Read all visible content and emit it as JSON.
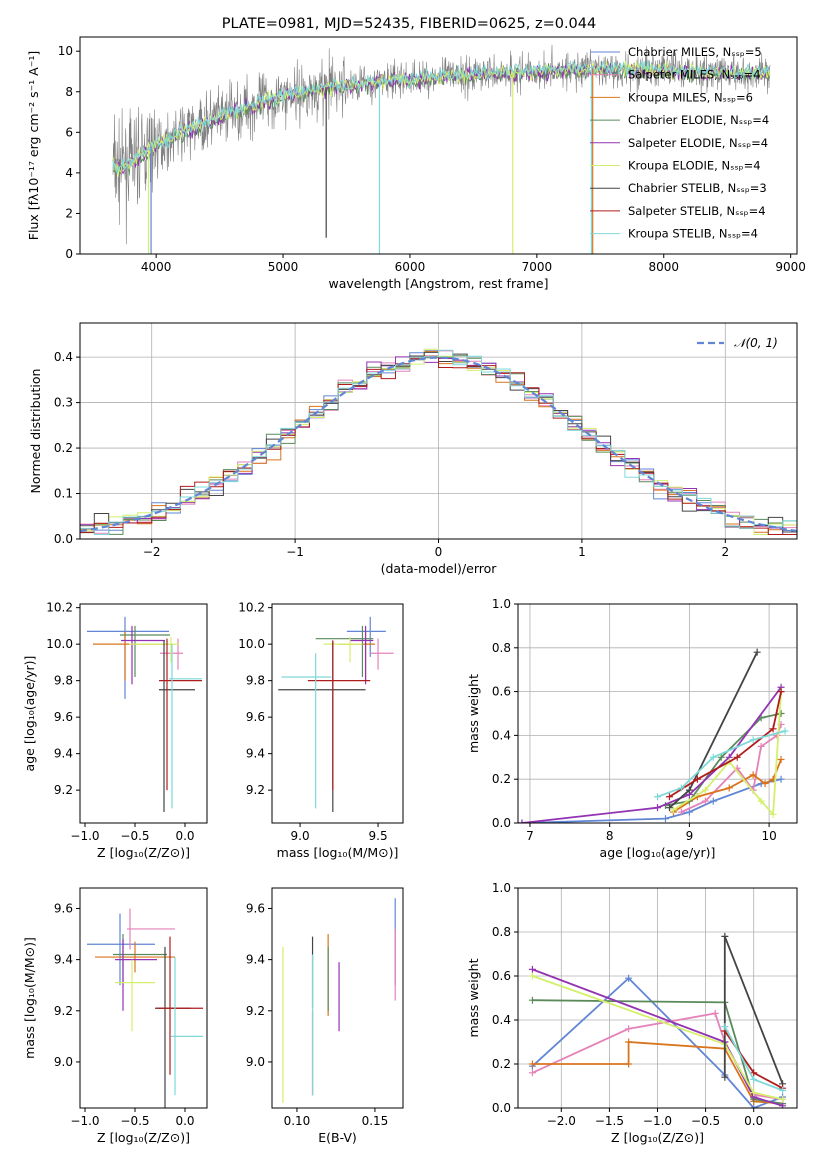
{
  "colors": [
    "#6186d5",
    "#e582b9",
    "#d9741d",
    "#5a8a5a",
    "#9333b3",
    "#d4ef6c",
    "#444444",
    "#b01d1d",
    "#7fd8d8"
  ],
  "chart_data": [
    {
      "id": "spectrum",
      "type": "line",
      "title": "PLATE=0981, MJD=52435, FIBERID=0625, z=0.044",
      "xlabel": "wavelength [Angstrom, rest frame]",
      "ylabel": "Flux [fλ10⁻¹⁷ erg cm⁻² s⁻¹ A⁻¹]",
      "xlim": [
        3400,
        9050
      ],
      "ylim": [
        0,
        10.7
      ],
      "xticks": [
        4000,
        5000,
        6000,
        7000,
        8000,
        9000
      ],
      "yticks": [
        0,
        2,
        4,
        6,
        8,
        10
      ],
      "legend_position": "right",
      "legend": [
        "Chabrier MILES, Nₛₛₚ=5",
        "Salpeter MILES, Nₛₛₚ=4",
        "Kroupa MILES, Nₛₛₚ=6",
        "Chabrier ELODIE, Nₛₛₚ=4",
        "Salpeter ELODIE, Nₛₛₚ=4",
        "Kroupa ELODIE, Nₛₛₚ=4",
        "Chabrier STELIB, Nₛₛₚ=3",
        "Salpeter STELIB, Nₛₛₚ=4",
        "Kroupa STELIB, Nₛₛₚ=4"
      ],
      "continuum": [
        [
          3660,
          4.4
        ],
        [
          3700,
          4.2
        ],
        [
          3800,
          4.5
        ],
        [
          3900,
          4.9
        ],
        [
          4000,
          5.4
        ],
        [
          4100,
          5.6
        ],
        [
          4200,
          6.0
        ],
        [
          4300,
          6.2
        ],
        [
          4400,
          6.5
        ],
        [
          4600,
          7.0
        ],
        [
          4800,
          7.4
        ],
        [
          5000,
          7.8
        ],
        [
          5200,
          8.0
        ],
        [
          5500,
          8.3
        ],
        [
          5800,
          8.5
        ],
        [
          6000,
          8.6
        ],
        [
          6300,
          8.8
        ],
        [
          6600,
          8.9
        ],
        [
          7000,
          9.0
        ],
        [
          7400,
          9.1
        ],
        [
          7800,
          9.1
        ],
        [
          8200,
          9.0
        ],
        [
          8600,
          8.9
        ],
        [
          8840,
          8.9
        ]
      ],
      "drops": [
        {
          "series": 0,
          "x": 3960,
          "to": 0
        },
        {
          "series": 5,
          "x": 3940,
          "to": 0
        },
        {
          "series": 8,
          "x": 5760,
          "to": 0
        },
        {
          "series": 5,
          "x": 6810,
          "to": 0
        },
        {
          "series": 2,
          "x": 7440,
          "to": 0
        },
        {
          "series": 8,
          "x": 7430,
          "to": 0
        },
        {
          "series": 6,
          "x": 5340,
          "to": 0.8
        }
      ]
    },
    {
      "id": "hist",
      "type": "step",
      "xlabel": "(data-model)/error",
      "ylabel": "Normed distribution",
      "xlim": [
        -2.5,
        2.5
      ],
      "ylim": [
        0,
        0.475
      ],
      "xticks": [
        -2,
        -1,
        0,
        1,
        2
      ],
      "yticks": [
        0.0,
        0.1,
        0.2,
        0.3,
        0.4
      ],
      "grid": true,
      "legend": "𝒩(0, 1)",
      "legend_position": "top-right",
      "bin_width": 0.1
    },
    {
      "id": "zage",
      "type": "errorbar",
      "xlabel": "Z [log₁₀(Z/Z⊙)]",
      "ylabel": "age  [log₁₀(age/yr)]",
      "xlim": [
        -1.05,
        0.22
      ],
      "ylim": [
        9.02,
        10.22
      ],
      "xticks": [
        -1.0,
        -0.5,
        0.0
      ],
      "yticks": [
        9.2,
        9.4,
        9.6,
        9.8,
        10.0,
        10.2
      ],
      "points": [
        {
          "x": -0.6,
          "y": 10.07,
          "xe": [
            -0.98,
            -0.16
          ],
          "ye": [
            9.7,
            10.15
          ]
        },
        {
          "x": -0.07,
          "y": 9.95,
          "xe": [
            -0.25,
            -0.02
          ],
          "ye": [
            9.86,
            10.03
          ]
        },
        {
          "x": -0.6,
          "y": 10.0,
          "xe": [
            -0.92,
            -0.16
          ],
          "ye": [
            9.8,
            10.07
          ]
        },
        {
          "x": -0.5,
          "y": 10.05,
          "xe": [
            -0.65,
            -0.15
          ],
          "ye": [
            9.82,
            10.1
          ]
        },
        {
          "x": -0.53,
          "y": 10.02,
          "xe": [
            -0.64,
            -0.2
          ],
          "ye": [
            9.78,
            10.1
          ]
        },
        {
          "x": -0.14,
          "y": 10.0,
          "xe": [
            -0.56,
            -0.06
          ],
          "ye": [
            9.9,
            10.04
          ]
        },
        {
          "x": -0.21,
          "y": 9.75,
          "xe": [
            -0.26,
            0.1
          ],
          "ye": [
            9.08,
            10.02
          ]
        },
        {
          "x": -0.18,
          "y": 9.8,
          "xe": [
            -0.26,
            0.17
          ],
          "ye": [
            9.2,
            10.03
          ]
        },
        {
          "x": -0.13,
          "y": 9.81,
          "xe": [
            -0.16,
            0.17
          ],
          "ye": [
            9.1,
            10.0
          ]
        }
      ]
    },
    {
      "id": "massage",
      "type": "errorbar",
      "xlabel": "mass [log₁₀(M/M⊙)]",
      "ylabel": "",
      "xlim": [
        8.82,
        9.66
      ],
      "ylim": [
        9.02,
        10.22
      ],
      "xticks": [
        9.0,
        9.5
      ],
      "yticks": [
        9.2,
        9.4,
        9.6,
        9.8,
        10.0,
        10.2
      ],
      "points": [
        {
          "x": 9.45,
          "y": 10.07,
          "xe": [
            9.3,
            9.55
          ],
          "ye": [
            9.93,
            10.15
          ]
        },
        {
          "x": 9.5,
          "y": 9.95,
          "xe": [
            9.45,
            9.6
          ],
          "ye": [
            9.86,
            10.03
          ]
        },
        {
          "x": 9.42,
          "y": 10.0,
          "xe": [
            9.25,
            9.48
          ],
          "ye": [
            9.8,
            10.07
          ]
        },
        {
          "x": 9.4,
          "y": 10.03,
          "xe": [
            9.1,
            9.47
          ],
          "ye": [
            9.82,
            10.1
          ]
        },
        {
          "x": 9.42,
          "y": 10.02,
          "xe": [
            9.32,
            9.47
          ],
          "ye": [
            9.78,
            10.1
          ]
        },
        {
          "x": 9.32,
          "y": 10.0,
          "xe": [
            9.15,
            9.4
          ],
          "ye": [
            9.9,
            10.04
          ]
        },
        {
          "x": 9.21,
          "y": 9.75,
          "xe": [
            8.86,
            9.42
          ],
          "ye": [
            9.08,
            10.02
          ]
        },
        {
          "x": 9.21,
          "y": 9.8,
          "xe": [
            9.05,
            9.45
          ],
          "ye": [
            9.2,
            10.02
          ]
        },
        {
          "x": 9.1,
          "y": 9.82,
          "xe": [
            8.88,
            9.2
          ],
          "ye": [
            9.1,
            9.95
          ]
        }
      ]
    },
    {
      "id": "agemw",
      "type": "line",
      "xlabel": "age  [log₁₀(age/yr)]",
      "ylabel": "mass weight",
      "xlim": [
        6.85,
        10.35
      ],
      "ylim": [
        0,
        1.0
      ],
      "xticks": [
        7,
        8,
        9,
        10
      ],
      "yticks": [
        0.0,
        0.2,
        0.4,
        0.6,
        0.8,
        1.0
      ],
      "grid": true,
      "series": [
        {
          "x": [
            6.9,
            8.7,
            9.0,
            9.3,
            9.9,
            10.15
          ],
          "y": [
            0.0,
            0.02,
            0.05,
            0.1,
            0.18,
            0.2
          ]
        },
        {
          "x": [
            8.9,
            9.2,
            9.6,
            9.8,
            9.9,
            10.1,
            10.15
          ],
          "y": [
            0.05,
            0.1,
            0.25,
            0.15,
            0.35,
            0.4,
            0.45
          ]
        },
        {
          "x": [
            8.8,
            9.1,
            9.5,
            9.8,
            9.95,
            10.05,
            10.15
          ],
          "y": [
            0.05,
            0.12,
            0.16,
            0.22,
            0.18,
            0.2,
            0.29
          ]
        },
        {
          "x": [
            8.7,
            9.0,
            9.4,
            9.9,
            10.15
          ],
          "y": [
            0.08,
            0.1,
            0.3,
            0.48,
            0.5
          ]
        },
        {
          "x": [
            6.9,
            8.6,
            9.0,
            9.5,
            10.15
          ],
          "y": [
            0.0,
            0.07,
            0.13,
            0.3,
            0.62
          ]
        },
        {
          "x": [
            8.8,
            9.2,
            9.5,
            9.9,
            10.05,
            10.15
          ],
          "y": [
            0.06,
            0.15,
            0.28,
            0.1,
            0.04,
            0.6
          ]
        },
        {
          "x": [
            8.75,
            9.0,
            9.85
          ],
          "y": [
            0.07,
            0.15,
            0.78
          ]
        },
        {
          "x": [
            8.75,
            9.1,
            9.6,
            10.05,
            10.15
          ],
          "y": [
            0.12,
            0.2,
            0.3,
            0.43,
            0.6
          ]
        },
        {
          "x": [
            8.6,
            8.9,
            9.3,
            9.8,
            10.2
          ],
          "y": [
            0.12,
            0.16,
            0.3,
            0.38,
            0.42
          ]
        }
      ]
    },
    {
      "id": "zmass",
      "type": "errorbar",
      "xlabel": "Z [log₁₀(Z/Z⊙)]",
      "ylabel": "mass [log₁₀(M/M⊙)]",
      "xlim": [
        -1.05,
        0.22
      ],
      "ylim": [
        8.82,
        9.68
      ],
      "xticks": [
        -1.0,
        -0.5,
        0.0
      ],
      "yticks": [
        9.0,
        9.2,
        9.4,
        9.6
      ],
      "points": [
        {
          "x": -0.65,
          "y": 9.46,
          "xe": [
            -0.98,
            -0.3
          ],
          "ye": [
            9.3,
            9.58
          ]
        },
        {
          "x": -0.55,
          "y": 9.52,
          "xe": [
            -0.58,
            -0.1
          ],
          "ye": [
            9.44,
            9.6
          ]
        },
        {
          "x": -0.5,
          "y": 9.41,
          "xe": [
            -0.9,
            -0.1
          ],
          "ye": [
            9.35,
            9.47
          ]
        },
        {
          "x": -0.62,
          "y": 9.42,
          "xe": [
            -0.72,
            -0.18
          ],
          "ye": [
            9.3,
            9.5
          ]
        },
        {
          "x": -0.62,
          "y": 9.4,
          "xe": [
            -0.7,
            -0.28
          ],
          "ye": [
            9.2,
            9.48
          ]
        },
        {
          "x": -0.53,
          "y": 9.31,
          "xe": [
            -0.7,
            -0.3
          ],
          "ye": [
            9.12,
            9.4
          ]
        },
        {
          "x": -0.2,
          "y": 9.21,
          "xe": [
            -0.3,
            0.06
          ],
          "ye": [
            8.82,
            9.45
          ]
        },
        {
          "x": -0.15,
          "y": 9.21,
          "xe": [
            -0.28,
            0.18
          ],
          "ye": [
            8.95,
            9.49
          ]
        },
        {
          "x": -0.1,
          "y": 9.1,
          "xe": [
            -0.14,
            0.18
          ],
          "ye": [
            8.87,
            9.41
          ]
        }
      ]
    },
    {
      "id": "ebvmass",
      "type": "errorbar",
      "xlabel": "E(B-V)",
      "ylabel": "",
      "xlim": [
        0.084,
        0.168
      ],
      "ylim": [
        8.82,
        9.68
      ],
      "xticks": [
        0.1,
        0.15
      ],
      "yticks": [
        9.0,
        9.2,
        9.4,
        9.6
      ],
      "points": [
        {
          "x": 0.163,
          "y": 9.52,
          "ye": [
            9.3,
            9.64
          ]
        },
        {
          "x": 0.163,
          "y": 9.41,
          "ye": [
            9.24,
            9.52
          ]
        },
        {
          "x": 0.12,
          "y": 9.37,
          "ye": [
            9.18,
            9.5
          ]
        },
        {
          "x": 0.12,
          "y": 9.33,
          "ye": [
            9.2,
            9.45
          ]
        },
        {
          "x": 0.127,
          "y": 9.26,
          "ye": [
            9.12,
            9.39
          ]
        },
        {
          "x": 0.091,
          "y": 9.12,
          "ye": [
            8.84,
            9.45
          ]
        },
        {
          "x": 0.11,
          "y": 9.3,
          "ye": [
            9.21,
            9.49
          ]
        },
        {
          "x": 0.11,
          "y": 9.05,
          "ye": [
            8.87,
            9.2
          ]
        },
        {
          "x": 0.11,
          "y": 9.12,
          "ye": [
            8.87,
            9.42
          ]
        }
      ]
    },
    {
      "id": "zmw",
      "type": "line",
      "xlabel": "Z [log₁₀(Z/Z⊙)]",
      "ylabel": "mass weight",
      "xlim": [
        -2.45,
        0.45
      ],
      "ylim": [
        0,
        1.0
      ],
      "xticks": [
        -2.0,
        -1.5,
        -1.0,
        -0.5,
        0.0
      ],
      "yticks": [
        0.0,
        0.2,
        0.4,
        0.6,
        0.8,
        1.0
      ],
      "grid": true,
      "series": [
        {
          "x": [
            -2.3,
            -1.3,
            -0.3,
            0.0,
            0.3
          ],
          "y": [
            0.19,
            0.59,
            0.15,
            0.0,
            0.05
          ]
        },
        {
          "x": [
            -2.3,
            -1.3,
            -0.4,
            -0.3,
            0.0,
            0.3
          ],
          "y": [
            0.16,
            0.36,
            0.43,
            0.3,
            0.06,
            0.04
          ]
        },
        {
          "x": [
            -2.3,
            -1.3,
            -1.3,
            -0.3,
            0.0,
            0.3
          ],
          "y": [
            0.2,
            0.2,
            0.3,
            0.27,
            0.03,
            0.02
          ]
        },
        {
          "x": [
            -2.3,
            -0.3,
            0.0,
            0.3
          ],
          "y": [
            0.49,
            0.48,
            0.04,
            0.02
          ]
        },
        {
          "x": [
            -2.3,
            -0.3,
            0.0,
            0.3
          ],
          "y": [
            0.63,
            0.3,
            0.05,
            0.01
          ]
        },
        {
          "x": [
            -2.3,
            -0.3,
            0.0,
            0.3
          ],
          "y": [
            0.6,
            0.29,
            0.07,
            0.04
          ]
        },
        {
          "x": [
            -0.3,
            -0.3,
            0.3
          ],
          "y": [
            0.14,
            0.78,
            0.11
          ]
        },
        {
          "x": [
            -0.3,
            0.0,
            0.3
          ],
          "y": [
            0.35,
            0.16,
            0.09
          ]
        },
        {
          "x": [
            -0.3,
            0.0,
            0.3
          ],
          "y": [
            0.37,
            0.13,
            0.08
          ]
        }
      ]
    }
  ]
}
